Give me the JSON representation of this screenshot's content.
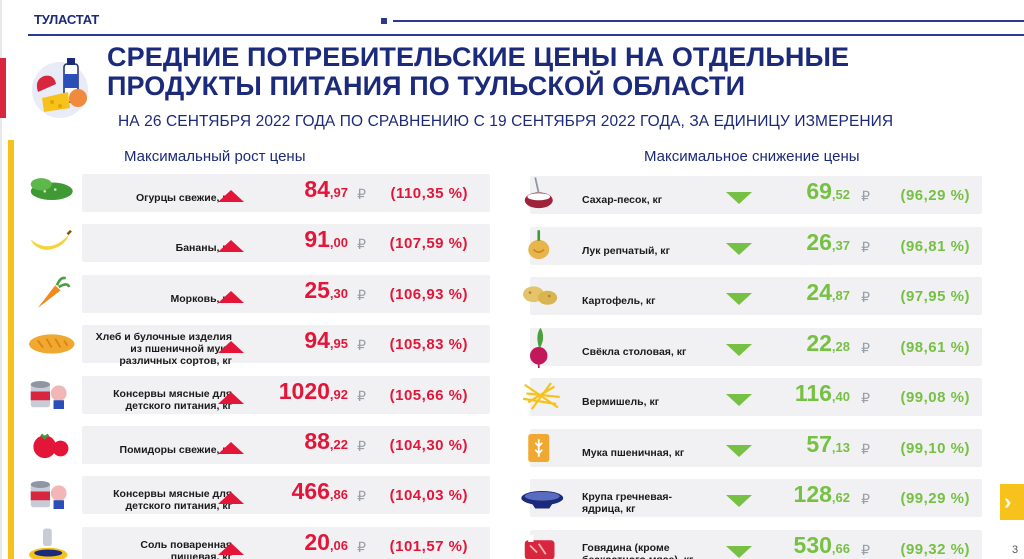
{
  "header": {
    "brand": "ТУЛАСТАТ",
    "title_line1": "СРЕДНИЕ ПОТРЕБИТЕЛЬСКИЕ ЦЕНЫ НА ОТДЕЛЬНЫЕ",
    "title_line2": "ПРОДУКТЫ ПИТАНИЯ ПО ТУЛЬСКОЙ ОБЛАСТИ",
    "subtitle": "НА 26 СЕНТЯБРЯ 2022 ГОДА ПО СРАВНЕНИЮ С 19 СЕНТЯБРЯ 2022 ГОДА, ЗА ЕДИНИЦУ ИЗМЕРЕНИЯ"
  },
  "colors": {
    "title": "#1b2a7a",
    "increase": "#e3163a",
    "decrease": "#76c043",
    "accent": "#f7c21b"
  },
  "increase": {
    "heading": "Максимальный рост цены",
    "items": [
      {
        "name": "Огурцы свежие, кг",
        "int": "84",
        "dec": ",97",
        "currency": "₽",
        "pct": "(110,35 %)",
        "icon": "cucumber-icon"
      },
      {
        "name": "Бананы, кг",
        "int": "91",
        "dec": ",00",
        "currency": "₽",
        "pct": "(107,59 %)",
        "icon": "banana-icon"
      },
      {
        "name": "Морковь, кг",
        "int": "25",
        "dec": ",30",
        "currency": "₽",
        "pct": "(106,93 %)",
        "icon": "carrot-icon"
      },
      {
        "name": "Хлеб и булочные изделия из пшеничной муки различных сортов, кг",
        "int": "94",
        "dec": ",95",
        "currency": "₽",
        "pct": "(105,83 %)",
        "icon": "bread-icon"
      },
      {
        "name": "Консервы мясные для детского питания, кг",
        "int": "1020",
        "dec": ",92",
        "currency": "₽",
        "pct": "(105,66 %)",
        "icon": "baby-food-can-icon"
      },
      {
        "name": "Помидоры свежие, кг",
        "int": "88",
        "dec": ",22",
        "currency": "₽",
        "pct": "(104,30 %)",
        "icon": "tomato-icon"
      },
      {
        "name": "Консервы мясные для детского питания, кг",
        "int": "466",
        "dec": ",86",
        "currency": "₽",
        "pct": "(104,03 %)",
        "icon": "baby-food-can-icon"
      },
      {
        "name": "Соль поваренная пищевая, кг",
        "int": "20",
        "dec": ",06",
        "currency": "₽",
        "pct": "(101,57 %)",
        "icon": "salt-icon"
      }
    ]
  },
  "decrease": {
    "heading": "Максимальное снижение цены",
    "items": [
      {
        "name": "Сахар-песок, кг",
        "int": "69",
        "dec": ",52",
        "currency": "₽",
        "pct": "(96,29 %)",
        "icon": "sugar-bowl-icon"
      },
      {
        "name": "Лук репчатый, кг",
        "int": "26",
        "dec": ",37",
        "currency": "₽",
        "pct": "(96,81 %)",
        "icon": "onion-icon"
      },
      {
        "name": "Картофель, кг",
        "int": "24",
        "dec": ",87",
        "currency": "₽",
        "pct": "(97,95 %)",
        "icon": "potato-icon"
      },
      {
        "name": "Свёкла столовая, кг",
        "int": "22",
        "dec": ",28",
        "currency": "₽",
        "pct": "(98,61 %)",
        "icon": "beet-icon"
      },
      {
        "name": "Вермишель, кг",
        "int": "116",
        "dec": ",40",
        "currency": "₽",
        "pct": "(99,08 %)",
        "icon": "noodles-icon"
      },
      {
        "name": "Мука пшеничная, кг",
        "int": "57",
        "dec": ",13",
        "currency": "₽",
        "pct": "(99,10 %)",
        "icon": "flour-bag-icon"
      },
      {
        "name": "Крупа гречневая-ядрица, кг",
        "int": "128",
        "dec": ",62",
        "currency": "₽",
        "pct": "(99,29 %)",
        "icon": "buckwheat-bowl-icon"
      },
      {
        "name": "Говядина (кроме бескостного мяса), кг",
        "int": "530",
        "dec": ",66",
        "currency": "₽",
        "pct": "(99,32 %)",
        "icon": "beef-icon"
      }
    ]
  },
  "page": {
    "number": "3"
  }
}
